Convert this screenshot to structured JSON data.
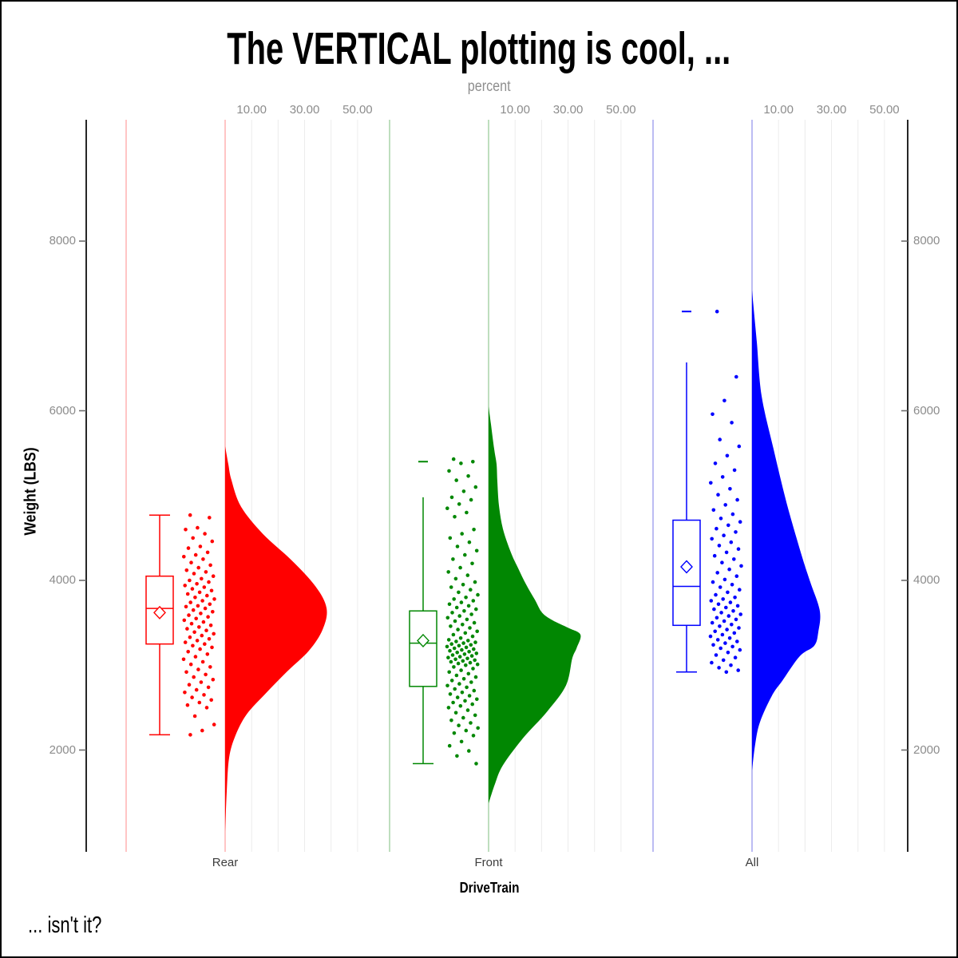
{
  "title": "The VERTICAL plotting is cool, ...",
  "footnote": "... isn't it?",
  "top_axis": {
    "label": "percent",
    "tick_labels": [
      "10.00",
      "30.00",
      "50.00"
    ],
    "tick_values": [
      10,
      30,
      50
    ],
    "grid_values": [
      10,
      20,
      30,
      40,
      50
    ]
  },
  "y_axis": {
    "label": "Weight (LBS)",
    "tick_values": [
      2000,
      4000,
      6000,
      8000
    ],
    "tick_labels": [
      "2000",
      "4000",
      "6000",
      "8000"
    ]
  },
  "x_axis": {
    "label": "DriveTrain",
    "categories": [
      "Rear",
      "Front",
      "All"
    ]
  },
  "colors": {
    "axis_line": "#000000",
    "tick_mark": "#6E6E6E",
    "tick_label": "#8C8C8C",
    "category_label": "#3D3D3D",
    "gridline": "#ECECEC",
    "box_fill": "#FFFFFF"
  },
  "chart_data": {
    "type": "raincloud",
    "orientation": "vertical",
    "value_axis_label": "Weight (LBS)",
    "percent_axis_label": "percent",
    "groups": [
      {
        "name": "Rear",
        "color": "#FF0000",
        "light_color": "#FFB2B2",
        "box": {
          "whisker_low": 2180,
          "q1": 3250,
          "median": 3670,
          "q3": 4050,
          "whisker_high": 4770,
          "mean": 3620,
          "cap_high": true,
          "max_marker": null
        },
        "violin": [
          [
            5580,
            0
          ],
          [
            5370,
            1.2
          ],
          [
            5180,
            2.4
          ],
          [
            4870,
            6
          ],
          [
            4550,
            14.2
          ],
          [
            4240,
            25
          ],
          [
            3930,
            34.1
          ],
          [
            3670,
            38.3
          ],
          [
            3420,
            36.8
          ],
          [
            3170,
            31.6
          ],
          [
            2920,
            23.2
          ],
          [
            2660,
            15.1
          ],
          [
            2420,
            8.1
          ],
          [
            2170,
            3.9
          ],
          [
            1910,
            1.5
          ],
          [
            1510,
            0.6
          ],
          [
            1040,
            0
          ]
        ],
        "points": [
          4770,
          4740,
          4620,
          4600,
          4550,
          4500,
          4460,
          4400,
          4380,
          4330,
          4300,
          4280,
          4250,
          4210,
          4180,
          4150,
          4120,
          4100,
          4080,
          4050,
          4020,
          4000,
          3980,
          3960,
          3940,
          3920,
          3900,
          3880,
          3860,
          3840,
          3820,
          3800,
          3780,
          3760,
          3740,
          3720,
          3700,
          3690,
          3670,
          3650,
          3630,
          3610,
          3590,
          3570,
          3550,
          3530,
          3510,
          3490,
          3470,
          3450,
          3430,
          3410,
          3390,
          3370,
          3350,
          3330,
          3310,
          3290,
          3270,
          3250,
          3230,
          3210,
          3190,
          3160,
          3130,
          3100,
          3070,
          3040,
          3010,
          2980,
          2950,
          2920,
          2890,
          2860,
          2830,
          2800,
          2770,
          2740,
          2710,
          2680,
          2650,
          2620,
          2590,
          2560,
          2530,
          2500,
          2400,
          2300,
          2230,
          2180
        ]
      },
      {
        "name": "Front",
        "color": "#018702",
        "light_color": "#A9D3A9",
        "box": {
          "whisker_low": 1840,
          "q1": 2750,
          "median": 3260,
          "q3": 3640,
          "whisker_high": 4980,
          "mean": 3290,
          "cap_high": false,
          "max_marker": 5400
        },
        "violin": [
          [
            6050,
            0
          ],
          [
            5840,
            0.9
          ],
          [
            5550,
            2.1
          ],
          [
            5370,
            3
          ],
          [
            5180,
            3.3
          ],
          [
            4890,
            3.9
          ],
          [
            4610,
            5.4
          ],
          [
            4330,
            8.4
          ],
          [
            4140,
            11.2
          ],
          [
            3950,
            14.2
          ],
          [
            3770,
            17.5
          ],
          [
            3620,
            20.2
          ],
          [
            3530,
            24.1
          ],
          [
            3440,
            30.1
          ],
          [
            3360,
            34.7
          ],
          [
            3200,
            33.2
          ],
          [
            3080,
            31.6
          ],
          [
            2760,
            29.2
          ],
          [
            2450,
            22
          ],
          [
            2140,
            13
          ],
          [
            1820,
            5.4
          ],
          [
            1600,
            2.4
          ],
          [
            1370,
            0
          ]
        ],
        "points": [
          5430,
          5400,
          5380,
          5290,
          5230,
          5180,
          5100,
          5050,
          4980,
          4950,
          4900,
          4850,
          4800,
          4750,
          4600,
          4550,
          4500,
          4450,
          4400,
          4350,
          4300,
          4250,
          4200,
          4150,
          4100,
          4060,
          4020,
          3980,
          3950,
          3920,
          3890,
          3860,
          3830,
          3800,
          3780,
          3760,
          3740,
          3720,
          3700,
          3680,
          3660,
          3640,
          3620,
          3600,
          3580,
          3560,
          3540,
          3520,
          3500,
          3480,
          3460,
          3440,
          3420,
          3400,
          3380,
          3360,
          3340,
          3320,
          3300,
          3290,
          3280,
          3270,
          3260,
          3250,
          3240,
          3230,
          3220,
          3210,
          3200,
          3190,
          3180,
          3170,
          3160,
          3150,
          3140,
          3130,
          3120,
          3110,
          3100,
          3090,
          3080,
          3070,
          3060,
          3050,
          3040,
          3030,
          3020,
          3010,
          3000,
          2980,
          2960,
          2940,
          2920,
          2900,
          2880,
          2860,
          2840,
          2820,
          2800,
          2780,
          2760,
          2740,
          2720,
          2700,
          2680,
          2660,
          2640,
          2620,
          2600,
          2580,
          2560,
          2540,
          2520,
          2500,
          2470,
          2440,
          2410,
          2380,
          2350,
          2320,
          2290,
          2260,
          2230,
          2200,
          2170,
          2100,
          2050,
          1990,
          1930,
          1840
        ]
      },
      {
        "name": "All",
        "color": "#0000FF",
        "light_color": "#A6A6EF",
        "box": {
          "whisker_low": 2920,
          "q1": 3470,
          "median": 3930,
          "q3": 4710,
          "whisker_high": 6570,
          "mean": 4160,
          "cap_high": false,
          "max_marker": 7170
        },
        "violin": [
          [
            7420,
            0
          ],
          [
            7110,
            0.9
          ],
          [
            6810,
            1.8
          ],
          [
            6180,
            3.6
          ],
          [
            5550,
            8.1
          ],
          [
            4920,
            13
          ],
          [
            4300,
            18.7
          ],
          [
            3980,
            22
          ],
          [
            3640,
            25.6
          ],
          [
            3390,
            25
          ],
          [
            3230,
            23.5
          ],
          [
            3110,
            18.1
          ],
          [
            2820,
            11.5
          ],
          [
            2640,
            7.5
          ],
          [
            2330,
            3
          ],
          [
            2070,
            1.2
          ],
          [
            1760,
            0
          ]
        ],
        "points": [
          7170,
          6400,
          6120,
          5960,
          5860,
          5660,
          5580,
          5470,
          5380,
          5300,
          5220,
          5150,
          5080,
          5010,
          4950,
          4890,
          4830,
          4780,
          4730,
          4690,
          4650,
          4610,
          4570,
          4530,
          4490,
          4450,
          4410,
          4370,
          4330,
          4290,
          4250,
          4210,
          4170,
          4130,
          4090,
          4050,
          4010,
          3980,
          3950,
          3920,
          3890,
          3860,
          3830,
          3800,
          3780,
          3760,
          3740,
          3720,
          3700,
          3680,
          3660,
          3640,
          3620,
          3600,
          3580,
          3560,
          3540,
          3520,
          3500,
          3480,
          3460,
          3440,
          3420,
          3400,
          3380,
          3360,
          3340,
          3320,
          3300,
          3280,
          3260,
          3240,
          3220,
          3200,
          3180,
          3150,
          3120,
          3090,
          3060,
          3030,
          3000,
          2970,
          2940,
          2920
        ]
      }
    ]
  }
}
